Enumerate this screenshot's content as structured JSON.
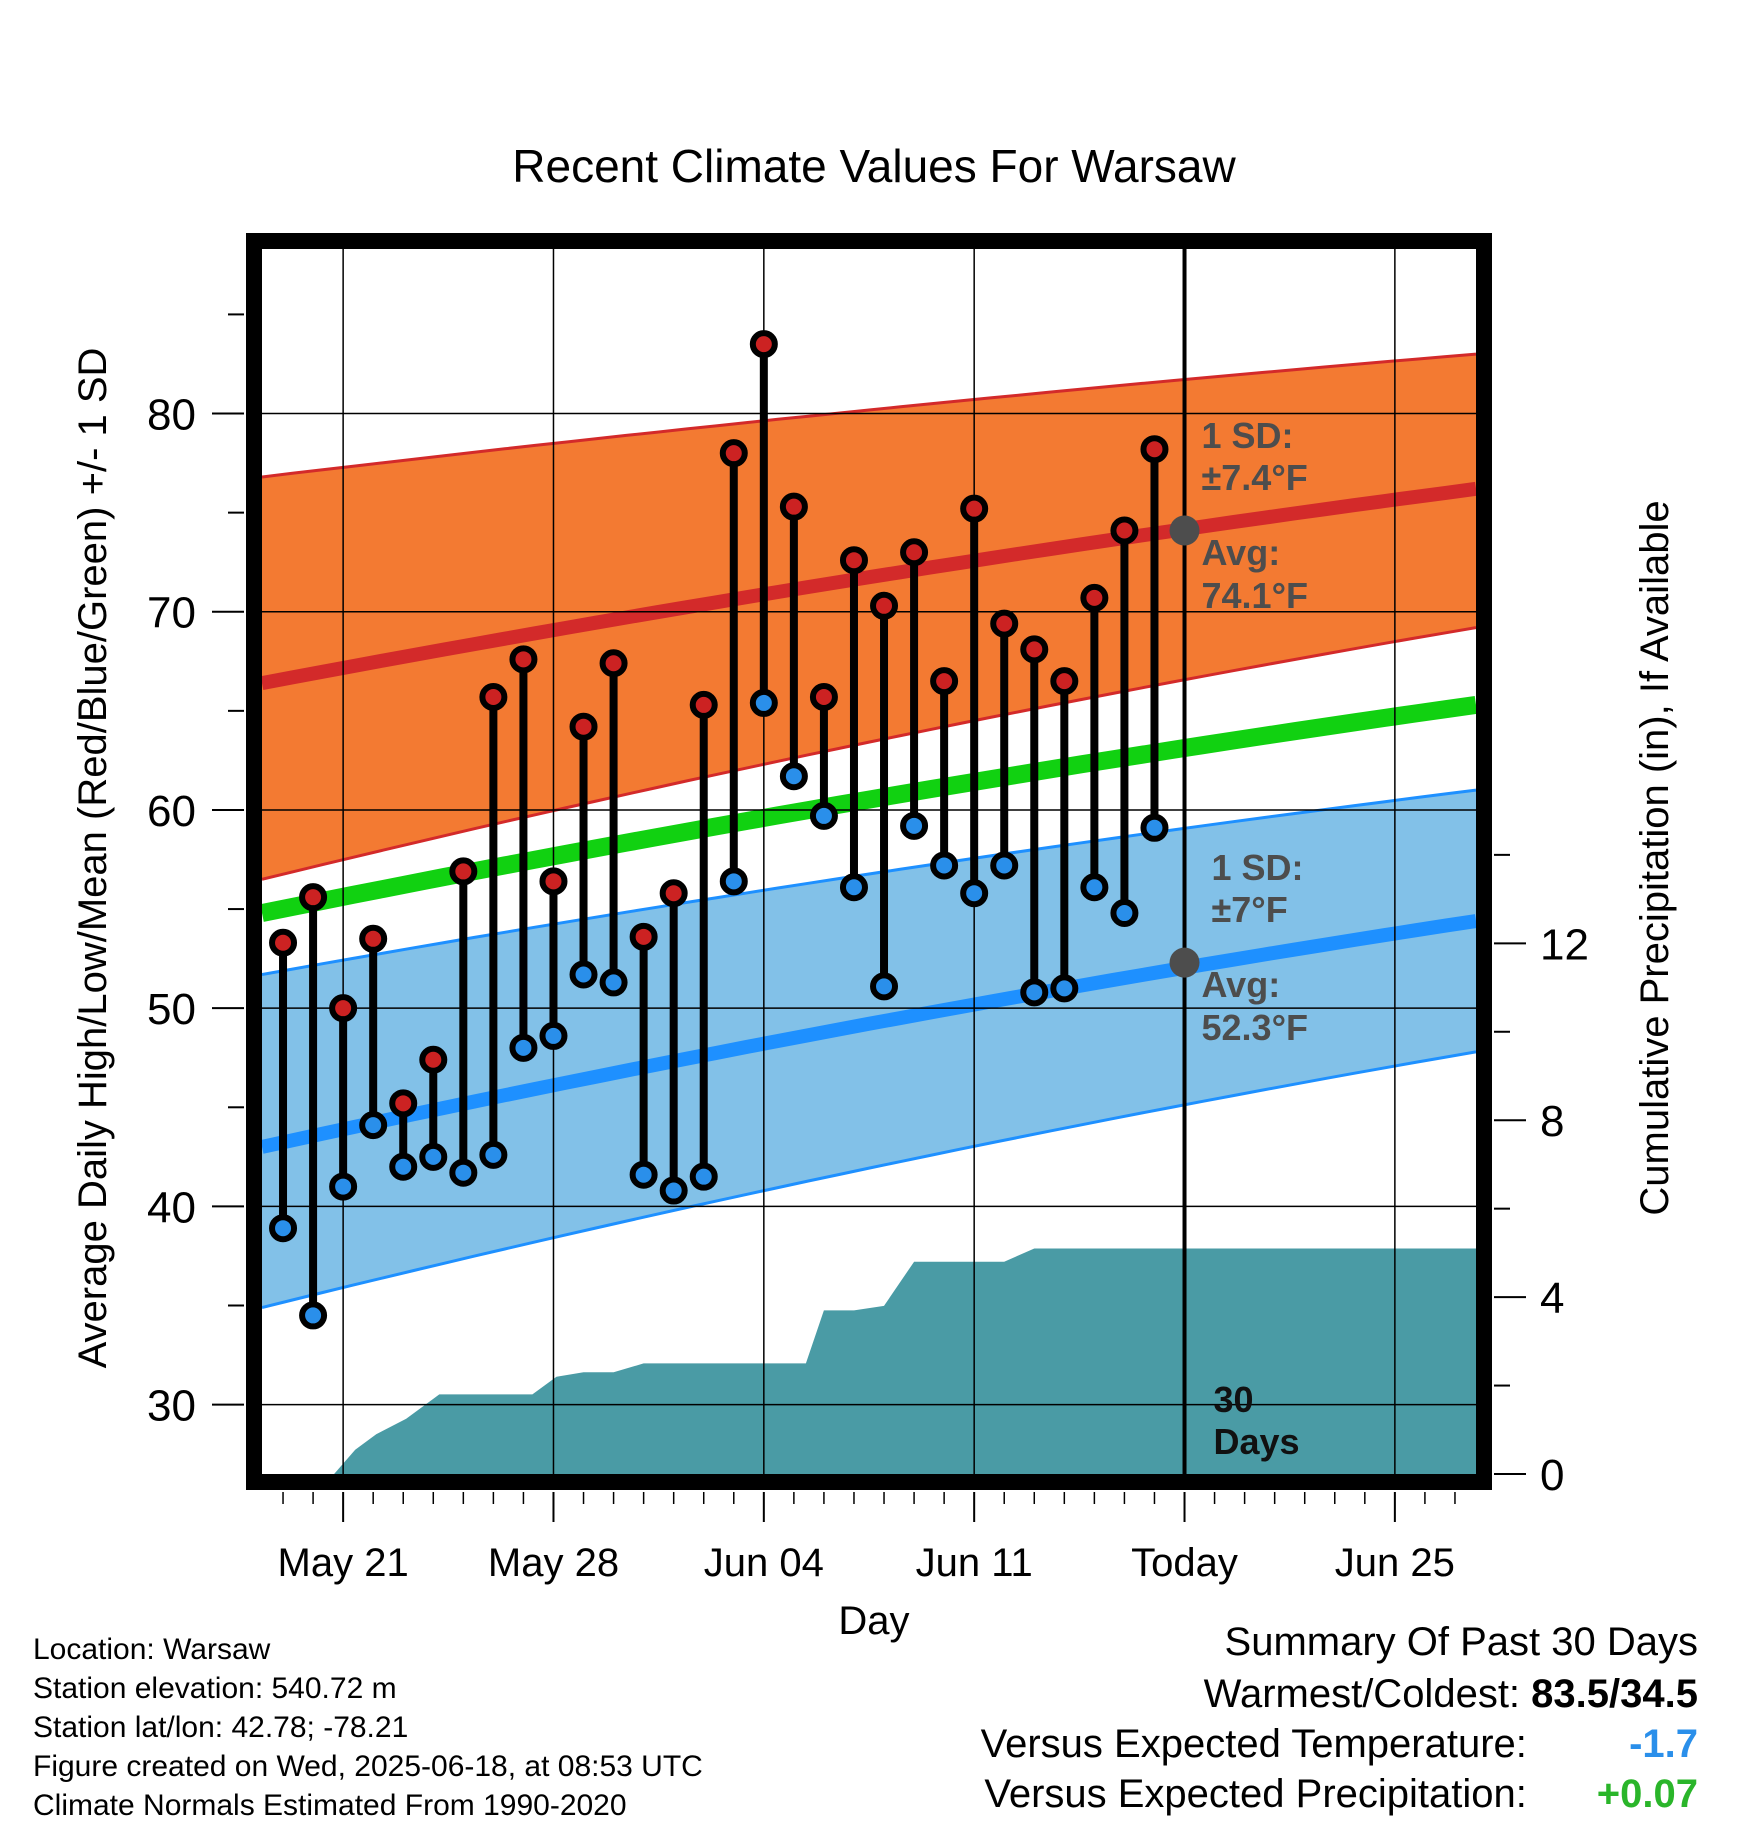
{
  "chart_data": {
    "type": "line",
    "title": "Recent Climate Values For Warsaw",
    "xlabel": "Day",
    "ylabel": "Average Daily High/Low/Mean (Red/Blue/Green) +/- 1 SD",
    "y2label": "Cumulative Precipitation (in), If Available",
    "x_tick_labels": [
      "May 21",
      "May 28",
      "Jun 04",
      "Jun 11",
      "Today",
      "Jun 25"
    ],
    "x_tick_days": [
      21,
      28,
      35,
      42,
      49,
      56
    ],
    "xlim_days": [
      18.3,
      58.7
    ],
    "ylim": [
      26.5,
      88.3
    ],
    "y_ticks": [
      30,
      40,
      50,
      60,
      70,
      80
    ],
    "y2lim": [
      0,
      27.7
    ],
    "y2_ticks": [
      0,
      4,
      8,
      12
    ],
    "today_day": 49,
    "normals": {
      "days": [
        18.3,
        58.7
      ],
      "high_avg": [
        66.4,
        76.2
      ],
      "high_sd_upper": [
        76.8,
        83.0
      ],
      "high_sd_lower": [
        56.5,
        69.2
      ],
      "low_avg": [
        43.0,
        54.4
      ],
      "low_sd_upper": [
        51.7,
        61.0
      ],
      "low_sd_lower": [
        34.9,
        47.8
      ],
      "mean_avg": [
        54.8,
        65.3
      ]
    },
    "daily_temps": {
      "days": [
        19,
        20,
        21,
        22,
        23,
        24,
        25,
        26,
        27,
        28,
        29,
        30,
        31,
        32,
        33,
        34,
        35,
        36,
        37,
        38,
        39,
        40,
        41,
        42,
        43,
        44,
        45,
        46,
        47,
        48
      ],
      "high": [
        53.3,
        55.6,
        50.0,
        53.5,
        45.2,
        47.4,
        56.9,
        65.7,
        67.6,
        56.4,
        64.2,
        67.4,
        53.6,
        55.8,
        65.3,
        78.0,
        83.5,
        75.3,
        65.7,
        72.6,
        70.3,
        73.0,
        66.5,
        75.2,
        69.4,
        68.1,
        66.5,
        70.7,
        74.1,
        78.2
      ],
      "low": [
        38.9,
        34.5,
        41.0,
        44.1,
        42.0,
        42.5,
        41.7,
        42.6,
        48.0,
        48.6,
        51.7,
        51.3,
        41.6,
        40.8,
        41.5,
        56.4,
        65.4,
        61.7,
        59.7,
        56.1,
        51.1,
        59.2,
        57.2,
        55.8,
        57.2,
        50.8,
        51.0,
        56.1,
        54.8,
        59.1
      ]
    },
    "precip_cumulative": {
      "days": [
        18.3,
        20.7,
        21.4,
        22.1,
        23.1,
        24.2,
        25.0,
        26.5,
        27.3,
        28.1,
        29.0,
        30.0,
        31.0,
        31.2,
        32.0,
        33.0,
        34.0,
        35.0,
        36.0,
        36.4,
        37.0,
        38.0,
        39.0,
        40.0,
        41.0,
        42.0,
        43.0,
        44.0,
        45.0,
        49.0,
        58.7
      ],
      "values": [
        0,
        0,
        0.55,
        0.9,
        1.25,
        1.8,
        1.8,
        1.8,
        1.8,
        2.2,
        2.3,
        2.3,
        2.5,
        2.5,
        2.5,
        2.5,
        2.5,
        2.5,
        2.5,
        2.5,
        3.7,
        3.7,
        3.8,
        4.8,
        4.8,
        4.8,
        4.8,
        5.1,
        5.1,
        5.1,
        5.1
      ]
    },
    "annotations": {
      "high_sd_label": "1 SD:",
      "high_sd_value": "±7.4°F",
      "high_avg_label": "Avg:",
      "high_avg_value": "74.1°F",
      "high_avg_point": 74.1,
      "low_sd_label": "1 SD:",
      "low_sd_value": "±7°F",
      "low_avg_label": "Avg:",
      "low_avg_value": "52.3°F",
      "low_avg_point": 52.3,
      "period_line1": "30",
      "period_line2": "Days"
    },
    "colors": {
      "high_band": "#f37a32",
      "high_avg_line": "#d32a2a",
      "low_band": "#82c1e8",
      "low_avg_line": "#1e90ff",
      "mean_line": "#11d111",
      "precip": "#4a9ba5",
      "high_marker": "#cc2222",
      "low_marker": "#2a8fea",
      "annotation_text": "#4d4d4d"
    }
  },
  "meta": {
    "location": "Location: Warsaw",
    "elevation": "Station elevation: 540.72 m",
    "latlon": "Station lat/lon: 42.78; -78.21",
    "created": "Figure created on Wed, 2025-06-18, at 08:53 UTC",
    "normals": "Climate Normals Estimated From 1990-2020"
  },
  "summary": {
    "title": "Summary Of Past 30 Days",
    "warm_cold_label": "Warmest/Coldest:",
    "warm_cold_value": "83.5/34.5",
    "temp_label": "Versus Expected Temperature:",
    "temp_value": "-1.7",
    "temp_color": "#2a8fea",
    "precip_label": "Versus Expected Precipitation:",
    "precip_value": "+0.07",
    "precip_color": "#2ab52a"
  }
}
